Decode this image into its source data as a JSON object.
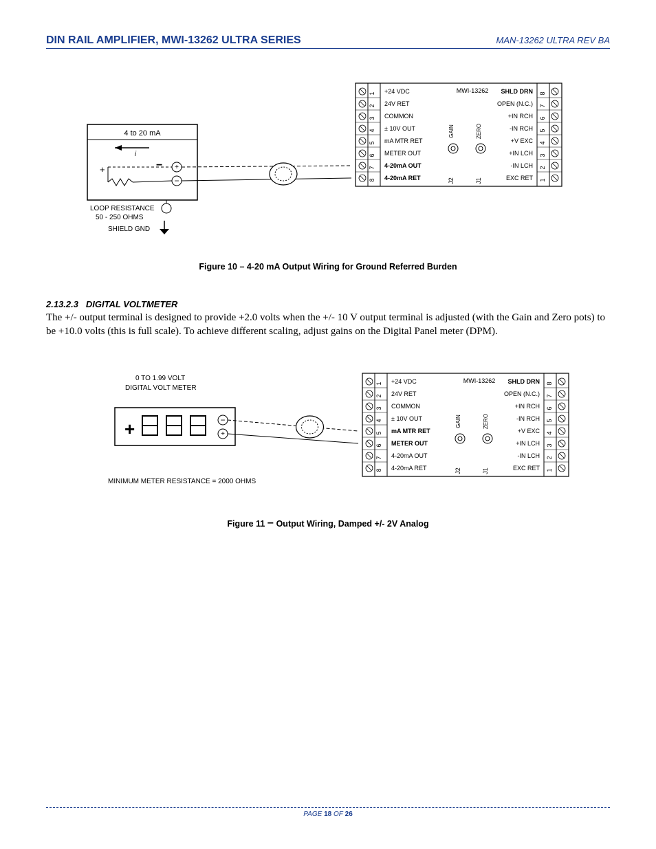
{
  "header": {
    "left": "DIN RAIL AMPLIFIER, MWI-13262 ULTRA SERIES",
    "right": "MAN-13262 ULTRA  REV BA"
  },
  "section": {
    "number": "2.13.2.3",
    "title": "DIGITAL VOLTMETER"
  },
  "body_text": "The +/- output terminal is designed to provide +2.0 volts when the +/- 10 V output terminal is adjusted (with the Gain and Zero pots) to be +10.0 volts (this is full scale). To achieve different scaling, adjust gains on the Digital Panel meter (DPM).",
  "figure10": {
    "caption": "Figure 10 – 4-20 mA Output Wiring for Ground Referred Burden",
    "left_box": {
      "title": "4 to 20 mA",
      "arrow_label": "i",
      "plus": "+",
      "minus": "−",
      "loop": "LOOP RESISTANCE",
      "ohms": "50 - 250 OHMS",
      "shield": "SHIELD GND"
    }
  },
  "figure11": {
    "caption_prefix": "Figure 11 ",
    "caption_dash": "−",
    "caption_suffix": " Output Wiring, Damped +/- 2V Analog",
    "left_box": {
      "line1": "0 TO 1.99 VOLT",
      "line2": "DIGITAL VOLT METER",
      "plus_sign": "+",
      "footnote": "MINIMUM METER RESISTANCE = 2000 OHMS"
    }
  },
  "module": {
    "model": "MWI-13262",
    "gain": "GAIN",
    "zero": "ZERO",
    "j1": "J1",
    "j2": "J2",
    "left_pins": [
      "+24 VDC",
      "24V RET",
      "COMMON",
      "± 10V OUT",
      "mA MTR RET",
      "METER OUT",
      "4-20mA OUT",
      "4-20mA RET"
    ],
    "right_pins": [
      "SHLD DRN",
      "OPEN (N.C.)",
      "+IN RCH",
      "-IN RCH",
      "+V EXC",
      "+IN LCH",
      "-IN LCH",
      "EXC RET"
    ],
    "left_nums": [
      "1",
      "2",
      "3",
      "4",
      "5",
      "6",
      "7",
      "8"
    ],
    "right_nums": [
      "8",
      "7",
      "6",
      "5",
      "4",
      "3",
      "2",
      "1"
    ]
  },
  "footer": {
    "page_label": "PAGE",
    "page": "18",
    "of": "OF",
    "total": "26"
  },
  "colors": {
    "brand": "#1a3d8f",
    "line": "#000000",
    "bg": "#ffffff"
  }
}
